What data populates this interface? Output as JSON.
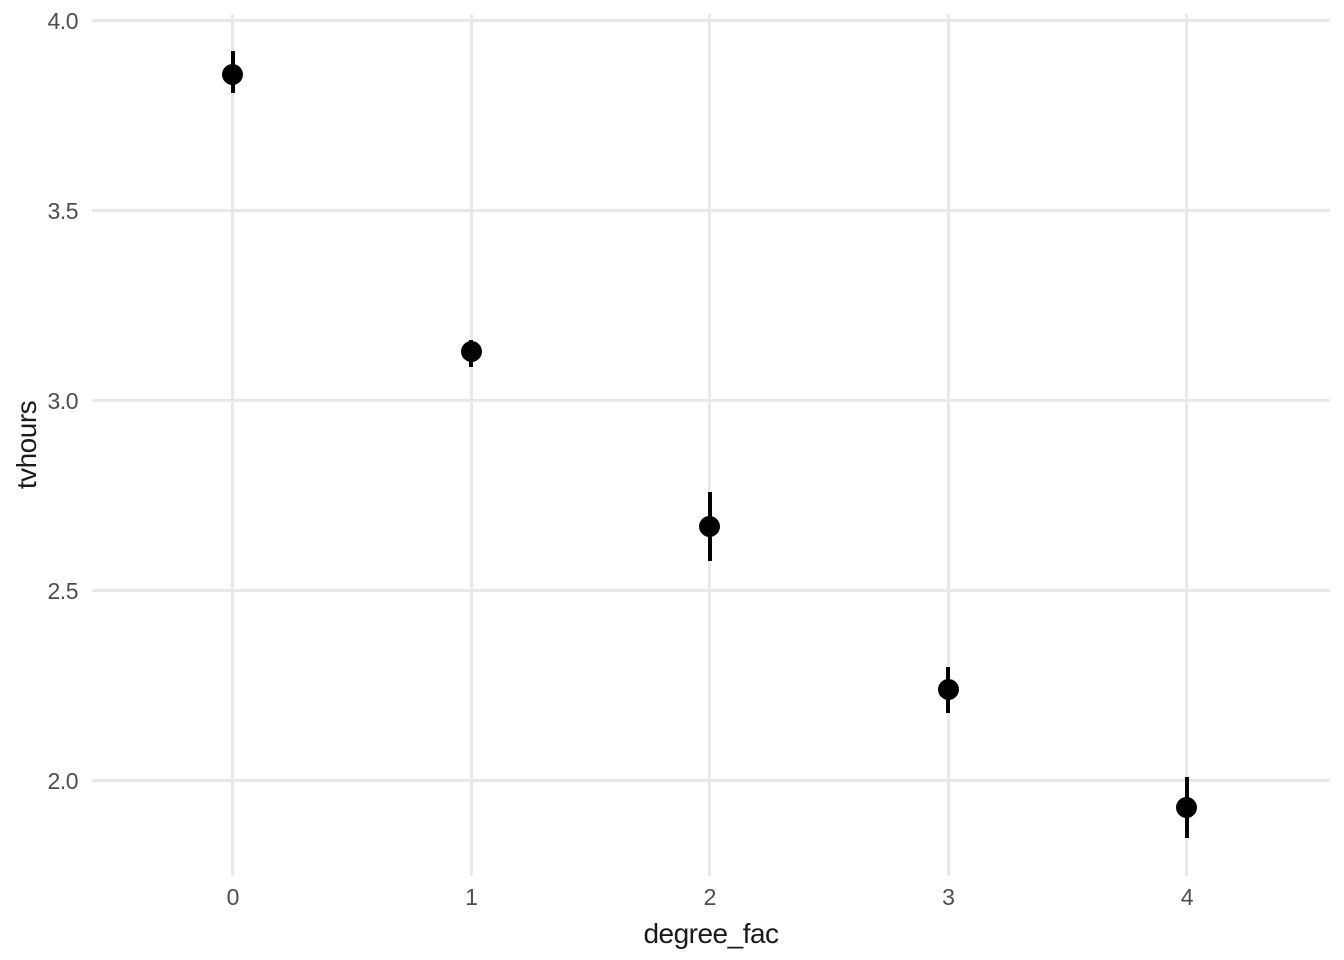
{
  "chart_data": {
    "type": "scatter",
    "title": "",
    "xlabel": "degree_fac",
    "ylabel": "tvhours",
    "x_ticks": [
      "0",
      "1",
      "2",
      "3",
      "4"
    ],
    "y_ticks": [
      "2.0",
      "2.5",
      "3.0",
      "3.5",
      "4.0"
    ],
    "xlim": [
      -0.59,
      4.6
    ],
    "ylim": [
      1.75,
      4.018
    ],
    "grid": "major-only",
    "legend": "none",
    "background_color": "#ffffff",
    "gridline_color": "#e8e8e8",
    "axis_text_color": "#4d4d4d",
    "axis_title_color": "#1a1a1a",
    "point_color": "#000000",
    "points": [
      {
        "x": 0,
        "y": 3.86,
        "ymin": 3.81,
        "ymax": 3.92
      },
      {
        "x": 1,
        "y": 3.13,
        "ymin": 3.09,
        "ymax": 3.16
      },
      {
        "x": 2,
        "y": 2.67,
        "ymin": 2.58,
        "ymax": 2.76
      },
      {
        "x": 3,
        "y": 2.24,
        "ymin": 2.18,
        "ymax": 2.3
      },
      {
        "x": 4,
        "y": 1.93,
        "ymin": 1.85,
        "ymax": 2.01
      }
    ]
  }
}
